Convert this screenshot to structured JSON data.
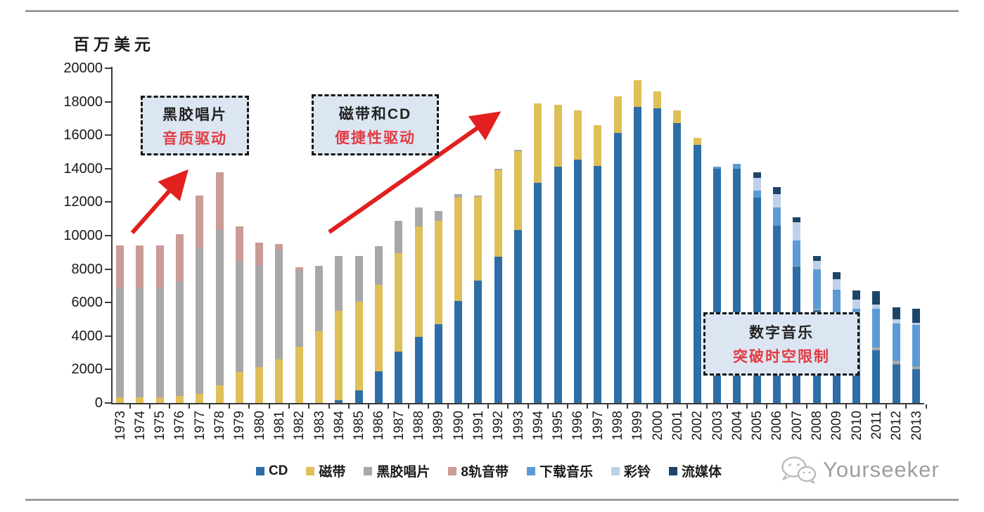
{
  "page": {
    "watermark_text": "Yourseeker"
  },
  "chart": {
    "unit_label": "百万美元",
    "annotations": [
      {
        "line1": "黑胶唱片",
        "line2": "音质驱动"
      },
      {
        "line1": "磁带和CD",
        "line2": "便捷性驱动"
      },
      {
        "line1": "数字音乐",
        "line2": "突破时空限制"
      }
    ]
  },
  "chart_data": {
    "type": "bar",
    "stacked": true,
    "title": "",
    "xlabel": "",
    "ylabel": "百万美元",
    "ylim": [
      0,
      20000
    ],
    "y_tick_step": 2000,
    "y_ticks": [
      0,
      2000,
      4000,
      6000,
      8000,
      10000,
      12000,
      14000,
      16000,
      18000,
      20000
    ],
    "grid": false,
    "legend_position": "bottom",
    "categories": [
      1973,
      1974,
      1975,
      1976,
      1977,
      1978,
      1979,
      1980,
      1981,
      1982,
      1983,
      1984,
      1985,
      1986,
      1987,
      1988,
      1989,
      1990,
      1991,
      1992,
      1993,
      1994,
      1995,
      1996,
      1997,
      1998,
      1999,
      2000,
      2001,
      2002,
      2003,
      2004,
      2005,
      2006,
      2007,
      2008,
      2009,
      2010,
      2011,
      2012,
      2013
    ],
    "series": [
      {
        "name": "CD",
        "color": "#2d6ea7",
        "values": [
          0,
          0,
          0,
          0,
          0,
          0,
          0,
          0,
          0,
          0,
          0,
          170,
          740,
          1890,
          3050,
          3950,
          4710,
          6080,
          7290,
          8730,
          10320,
          13140,
          14100,
          14520,
          14170,
          16130,
          17690,
          17590,
          16720,
          15400,
          13980,
          14000,
          12250,
          10600,
          8150,
          5540,
          4650,
          3250,
          3160,
          2320,
          2015
        ]
      },
      {
        "name": "磁带",
        "color": "#dfbf58",
        "values": [
          350,
          350,
          350,
          420,
          550,
          1050,
          1860,
          2150,
          2600,
          3350,
          4300,
          5350,
          5330,
          5150,
          5920,
          6600,
          6180,
          6170,
          5000,
          5170,
          4730,
          4760,
          3700,
          2980,
          2430,
          2170,
          1610,
          1010,
          780,
          450,
          0,
          0,
          0,
          0,
          0,
          0,
          0,
          0,
          0,
          0,
          0
        ]
      },
      {
        "name": "黑胶唱片",
        "color": "#a8a8a8",
        "values": [
          6500,
          6500,
          6550,
          6850,
          8740,
          9280,
          6610,
          6070,
          6550,
          4600,
          3850,
          3280,
          2700,
          2350,
          1930,
          1150,
          560,
          250,
          110,
          100,
          80,
          0,
          0,
          0,
          0,
          0,
          0,
          0,
          0,
          0,
          0,
          0,
          0,
          0,
          50,
          80,
          60,
          60,
          160,
          210,
          165
        ]
      },
      {
        "name": "8轨音带",
        "color": "#cb9b96",
        "values": [
          2550,
          2550,
          2500,
          2830,
          3110,
          3470,
          2080,
          1380,
          350,
          150,
          50,
          0,
          0,
          0,
          0,
          0,
          0,
          0,
          0,
          0,
          0,
          0,
          0,
          0,
          0,
          0,
          0,
          0,
          0,
          0,
          0,
          0,
          0,
          0,
          0,
          0,
          0,
          0,
          0,
          0,
          0
        ]
      },
      {
        "name": "下载音乐",
        "color": "#5b9bd5",
        "values": [
          0,
          0,
          0,
          0,
          0,
          0,
          0,
          0,
          0,
          0,
          0,
          0,
          0,
          0,
          0,
          0,
          0,
          0,
          0,
          0,
          0,
          0,
          0,
          0,
          0,
          0,
          0,
          0,
          0,
          0,
          120,
          300,
          450,
          1100,
          1500,
          2360,
          2050,
          2300,
          2330,
          2210,
          2480
        ]
      },
      {
        "name": "彩铃",
        "color": "#bed1e8",
        "values": [
          0,
          0,
          0,
          0,
          0,
          0,
          0,
          0,
          0,
          0,
          0,
          0,
          0,
          0,
          0,
          0,
          0,
          0,
          0,
          0,
          0,
          0,
          0,
          0,
          0,
          0,
          0,
          0,
          0,
          0,
          0,
          0,
          750,
          780,
          1080,
          520,
          630,
          580,
          230,
          270,
          140
        ]
      },
      {
        "name": "流媒体",
        "color": "#1d4568",
        "values": [
          0,
          0,
          0,
          0,
          0,
          0,
          0,
          0,
          0,
          0,
          0,
          0,
          0,
          0,
          0,
          0,
          0,
          0,
          0,
          0,
          0,
          0,
          0,
          0,
          0,
          0,
          0,
          0,
          0,
          0,
          0,
          0,
          330,
          410,
          320,
          300,
          420,
          515,
          790,
          690,
          830
        ]
      }
    ]
  }
}
